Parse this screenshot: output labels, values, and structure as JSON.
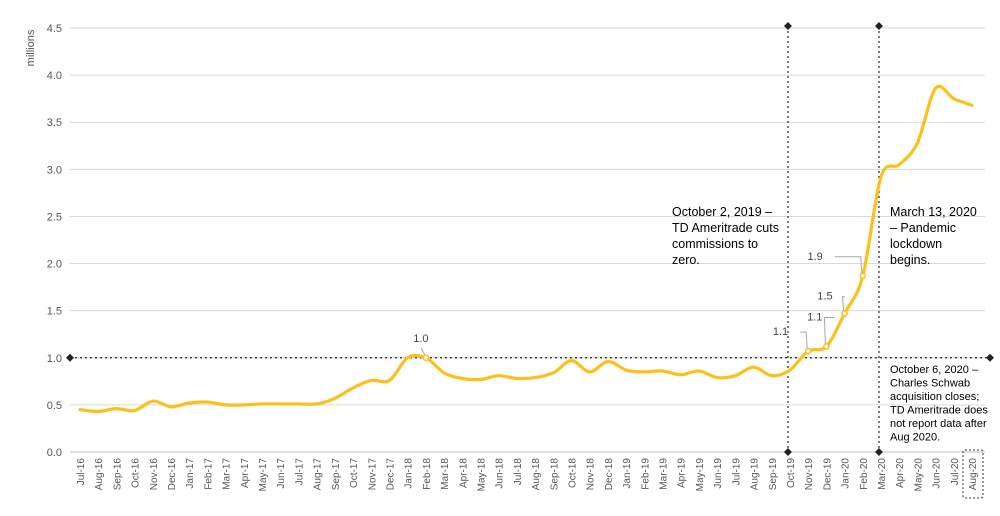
{
  "chart_data": {
    "type": "line",
    "ylabel": "millions",
    "ylim": [
      0,
      4.5
    ],
    "yticks": [
      "0.0",
      "0.5",
      "1.0",
      "1.5",
      "2.0",
      "2.5",
      "3.0",
      "3.5",
      "4.0",
      "4.5"
    ],
    "grid": true,
    "categories": [
      "Jul-16",
      "Aug-16",
      "Sep-16",
      "Oct-16",
      "Nov-16",
      "Dec-16",
      "Jan-17",
      "Feb-17",
      "Mar-17",
      "Apr-17",
      "May-17",
      "Jun-17",
      "Jul-17",
      "Aug-17",
      "Sep-17",
      "Oct-17",
      "Nov-17",
      "Dec-17",
      "Jan-18",
      "Feb-18",
      "Mar-18",
      "Apr-18",
      "May-18",
      "Jun-18",
      "Jul-18",
      "Aug-18",
      "Sep-18",
      "Oct-18",
      "Nov-18",
      "Dec-18",
      "Jan-19",
      "Feb-19",
      "Mar-19",
      "Apr-19",
      "May-19",
      "Jun-19",
      "Jul-19",
      "Aug-19",
      "Sep-19",
      "Oct-19",
      "Nov-19",
      "Dec-19",
      "Jan-20",
      "Feb-20",
      "Mar-20",
      "Apr-20",
      "May-20",
      "Jun-20",
      "Jul-20",
      "Aug-20"
    ],
    "series": [
      {
        "color": "#fdbf1a",
        "values": [
          0.45,
          0.43,
          0.46,
          0.44,
          0.54,
          0.48,
          0.52,
          0.53,
          0.5,
          0.5,
          0.51,
          0.51,
          0.51,
          0.51,
          0.57,
          0.68,
          0.76,
          0.76,
          1.0,
          1.0,
          0.84,
          0.78,
          0.77,
          0.81,
          0.78,
          0.79,
          0.84,
          0.97,
          0.85,
          0.96,
          0.87,
          0.85,
          0.86,
          0.82,
          0.86,
          0.79,
          0.81,
          0.9,
          0.81,
          0.87,
          1.07,
          1.12,
          1.47,
          1.87,
          2.92,
          3.05,
          3.28,
          3.86,
          3.75,
          3.68
        ]
      }
    ],
    "data_labels": [
      {
        "text": "1.0",
        "index": 19
      },
      {
        "text": "1.1",
        "index": 40
      },
      {
        "text": "1.1",
        "index": 41
      },
      {
        "text": "1.5",
        "index": 42
      },
      {
        "text": "1.9",
        "index": 43
      }
    ],
    "reference_lines": {
      "horizontal_value": 1.0,
      "vertical_positions": [
        39,
        44
      ]
    },
    "annotations": [
      {
        "lines": [
          "October 2, 2019 –",
          "TD Ameritrade cuts",
          "commissions to",
          "zero."
        ]
      },
      {
        "lines": [
          "March 13, 2020",
          "– Pandemic",
          "lockdown",
          "begins."
        ]
      },
      {
        "lines": [
          "October 6, 2020 –",
          "Charles Schwab",
          "acquisition closes;",
          "TD Ameritrade does",
          "not report data after",
          "Aug 2020."
        ]
      }
    ],
    "highlighted_category": "Aug-20"
  }
}
